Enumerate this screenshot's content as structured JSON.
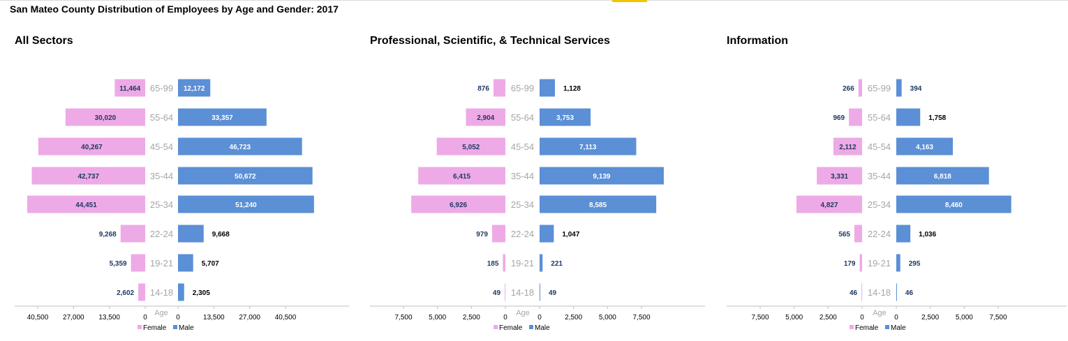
{
  "title": "San Mateo County Distribution of Employees by Age and Gender: 2017",
  "colors": {
    "female": "#eeaae6",
    "male": "#5b8fd6",
    "age_label": "#a6a6a6",
    "value_label": "#1f3864",
    "axis": "#bfbfbf"
  },
  "chart_data": [
    {
      "type": "bar",
      "orientation": "horizontal-population-pyramid",
      "title": "All Sectors",
      "center_axis_label": "Age",
      "categories": [
        "65-99",
        "55-64",
        "45-54",
        "35-44",
        "25-34",
        "22-24",
        "19-21",
        "14-18"
      ],
      "series": [
        {
          "name": "Female",
          "values": [
            11464,
            30020,
            40267,
            42737,
            44451,
            9268,
            5359,
            2602
          ],
          "labels": [
            "11,464",
            "30,020",
            "40,267",
            "42,737",
            "44,451",
            "9,268",
            "5,359",
            "2,602"
          ]
        },
        {
          "name": "Male",
          "values": [
            12172,
            33357,
            46723,
            50672,
            51240,
            9668,
            5707,
            2305
          ],
          "labels": [
            "12,172",
            "33,357",
            "46,723",
            "50,672",
            "51,240",
            "9,668",
            "5,707",
            "2,305"
          ]
        }
      ],
      "female_ticks": [
        "40,500",
        "27,000",
        "13,500",
        "0"
      ],
      "male_ticks": [
        "0",
        "13,500",
        "27,000",
        "40,500"
      ],
      "xlim": [
        0,
        58000
      ],
      "tick_values": [
        0,
        13500,
        27000,
        40500
      ],
      "legend": [
        "Female",
        "Male"
      ],
      "legend_position": "bottom"
    },
    {
      "type": "bar",
      "orientation": "horizontal-population-pyramid",
      "title": "Professional, Scientific, & Technical Services",
      "center_axis_label": "Age",
      "categories": [
        "65-99",
        "55-64",
        "45-54",
        "35-44",
        "25-34",
        "22-24",
        "19-21",
        "14-18"
      ],
      "series": [
        {
          "name": "Female",
          "values": [
            876,
            2904,
            5052,
            6415,
            6926,
            979,
            185,
            49
          ],
          "labels": [
            "876",
            "2,904",
            "5,052",
            "6,415",
            "6,926",
            "979",
            "185",
            "49"
          ]
        },
        {
          "name": "Male",
          "values": [
            1128,
            3753,
            7113,
            9139,
            8585,
            1047,
            221,
            49
          ],
          "labels": [
            "1,128",
            "3,753",
            "7,113",
            "9,139",
            "8,585",
            "1,047",
            "221",
            "49"
          ]
        }
      ],
      "female_ticks": [
        "7,500",
        "5,000",
        "2,500",
        "0"
      ],
      "male_ticks": [
        "0",
        "2,500",
        "5,000",
        "7,500"
      ],
      "xlim": [
        0,
        10000
      ],
      "tick_values": [
        0,
        2500,
        5000,
        7500
      ],
      "legend": [
        "Female",
        "Male"
      ],
      "legend_position": "bottom"
    },
    {
      "type": "bar",
      "orientation": "horizontal-population-pyramid",
      "title": "Information",
      "center_axis_label": "Age",
      "categories": [
        "65-99",
        "55-64",
        "45-54",
        "35-44",
        "25-34",
        "22-24",
        "19-21",
        "14-18"
      ],
      "series": [
        {
          "name": "Female",
          "values": [
            266,
            969,
            2112,
            3331,
            4827,
            565,
            179,
            46
          ],
          "labels": [
            "266",
            "969",
            "2,112",
            "3,331",
            "4,827",
            "565",
            "179",
            "46"
          ]
        },
        {
          "name": "Male",
          "values": [
            394,
            1758,
            4163,
            6818,
            8460,
            1036,
            295,
            46
          ],
          "labels": [
            "394",
            "1,758",
            "4,163",
            "6,818",
            "8,460",
            "1,036",
            "295",
            "46"
          ]
        }
      ],
      "female_ticks": [
        "7,500",
        "5,000",
        "2,500",
        "0"
      ],
      "male_ticks": [
        "0",
        "2,500",
        "5,000",
        "7,500"
      ],
      "xlim": [
        0,
        10000
      ],
      "tick_values": [
        0,
        2500,
        5000,
        7500
      ],
      "legend": [
        "Female",
        "Male"
      ],
      "legend_position": "bottom"
    }
  ]
}
